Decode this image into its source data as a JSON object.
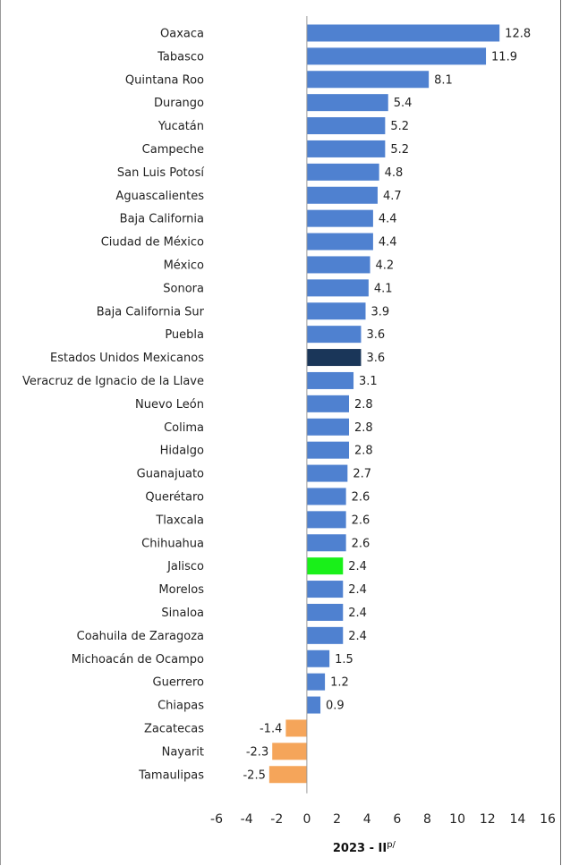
{
  "chart_data": {
    "type": "bar",
    "orientation": "horizontal",
    "categories": [
      "Oaxaca",
      "Tabasco",
      "Quintana Roo",
      "Durango",
      "Yucatán",
      "Campeche",
      "San Luis Potosí",
      "Aguascalientes",
      "Baja California",
      "Ciudad de México",
      "México",
      "Sonora",
      "Baja California Sur",
      "Puebla",
      "Estados Unidos Mexicanos",
      "Veracruz de Ignacio de la Llave",
      "Nuevo León",
      "Colima",
      "Hidalgo",
      "Guanajuato",
      "Querétaro",
      "Tlaxcala",
      "Chihuahua",
      "Jalisco",
      "Morelos",
      "Sinaloa",
      "Coahuila de Zaragoza",
      "Michoacán de Ocampo",
      "Guerrero",
      "Chiapas",
      "Zacatecas",
      "Nayarit",
      "Tamaulipas"
    ],
    "values": [
      12.8,
      11.9,
      8.1,
      5.4,
      5.2,
      5.2,
      4.8,
      4.7,
      4.4,
      4.4,
      4.2,
      4.1,
      3.9,
      3.6,
      3.6,
      3.1,
      2.8,
      2.8,
      2.8,
      2.7,
      2.6,
      2.6,
      2.6,
      2.4,
      2.4,
      2.4,
      2.4,
      1.5,
      1.2,
      0.9,
      -1.4,
      -2.3,
      -2.5
    ],
    "value_labels": [
      "12.8",
      "11.9",
      "8.1",
      "5.4",
      "5.2",
      "5.2",
      "4.8",
      "4.7",
      "4.4",
      "4.4",
      "4.2",
      "4.1",
      "3.9",
      "3.6",
      "3.6",
      "3.1",
      "2.8",
      "2.8",
      "2.8",
      "2.7",
      "2.6",
      "2.6",
      "2.6",
      "2.4",
      "2.4",
      "2.4",
      "2.4",
      "1.5",
      "1.2",
      "0.9",
      "-1.4",
      "-2.3",
      "-2.5"
    ],
    "xlim": [
      -6,
      16
    ],
    "xticks": [
      -6,
      -4,
      -2,
      0,
      2,
      4,
      6,
      8,
      10,
      12,
      14,
      16
    ],
    "xlabel": "2023 - II",
    "xlabel_sup": "p/",
    "grid": false,
    "colors": {
      "positive": "#4f81d0",
      "negative": "#f5a55a",
      "national": "#1a3659",
      "highlight": "#19f019"
    },
    "highlighted": {
      "Estados Unidos Mexicanos": "national",
      "Jalisco": "highlight"
    }
  }
}
